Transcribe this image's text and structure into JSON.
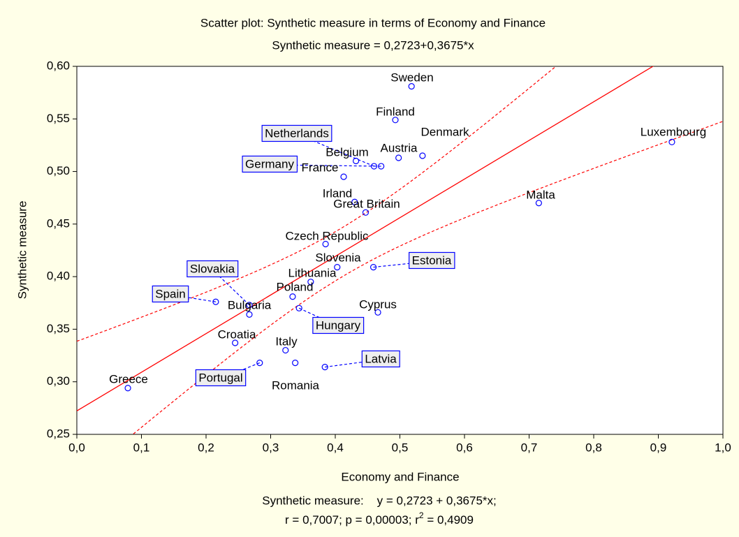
{
  "chart_data": {
    "type": "scatter",
    "title": "Scatter plot: Synthetic measure in terms of Economy and Finance",
    "subtitle": "Synthetic measure = 0,2723+0,3675*x",
    "x_label": "Economy and Finance",
    "y_label": "Synthetic measure",
    "notes": [
      "Synthetic measure:    y = 0,2723 + 0,3675*x;",
      "r = 0,7007; p = 0,00003; r",
      "2",
      " = 0,4909"
    ],
    "regression": {
      "intercept": 0.2723,
      "slope": 0.3675
    },
    "labels": [
      "Sweden",
      "Finland",
      "Denmark",
      "Luxembourg",
      "Malta",
      "Belgium",
      "Netherlands",
      "Austria",
      "Germany",
      "France",
      "Irland",
      "Great Britain",
      "Czech Republic",
      "Slovenia",
      "Estonia",
      "Lithuania",
      "Poland",
      "Slovakia",
      "Spain",
      "Bulgaria",
      "Hungary",
      "Cyprus",
      "Croatia",
      "Italy",
      "Portugal",
      "Romania",
      "Latvia",
      "Greece"
    ],
    "x": [
      0.518,
      0.493,
      0.535,
      0.921,
      0.715,
      0.432,
      0.46,
      0.498,
      0.471,
      0.413,
      0.43,
      0.447,
      0.385,
      0.403,
      0.459,
      0.362,
      0.334,
      0.267,
      0.215,
      0.267,
      0.344,
      0.466,
      0.245,
      0.323,
      0.283,
      0.338,
      0.384,
      0.079
    ],
    "values": [
      0.581,
      0.549,
      0.515,
      0.528,
      0.47,
      0.51,
      0.505,
      0.513,
      0.505,
      0.495,
      0.471,
      0.461,
      0.431,
      0.409,
      0.409,
      0.395,
      0.381,
      0.373,
      0.376,
      0.364,
      0.37,
      0.366,
      0.337,
      0.33,
      0.318,
      0.318,
      0.314,
      0.294
    ],
    "color": "#0000ff",
    "line_color": "#ff0000",
    "xlim": [
      0,
      1
    ],
    "ylim": [
      0.25,
      0.6
    ],
    "xticks": [
      {
        "value": 0,
        "label": "0,0"
      },
      {
        "value": 0.1,
        "label": "0,1"
      },
      {
        "value": 0.2,
        "label": "0,2"
      },
      {
        "value": 0.3,
        "label": "0,3"
      },
      {
        "value": 0.4,
        "label": "0,4"
      },
      {
        "value": 0.5,
        "label": "0,5"
      },
      {
        "value": 0.6,
        "label": "0,6"
      },
      {
        "value": 0.7,
        "label": "0,7"
      },
      {
        "value": 0.8,
        "label": "0,8"
      },
      {
        "value": 0.9,
        "label": "0,9"
      },
      {
        "value": 1,
        "label": "1,0"
      }
    ],
    "yticks": [
      {
        "value": 0.25,
        "label": "0,25"
      },
      {
        "value": 0.3,
        "label": "0,30"
      },
      {
        "value": 0.35,
        "label": "0,35"
      },
      {
        "value": 0.4,
        "label": "0,40"
      },
      {
        "value": 0.45,
        "label": "0,45"
      },
      {
        "value": 0.5,
        "label": "0,50"
      },
      {
        "value": 0.55,
        "label": "0,55"
      },
      {
        "value": 0.6,
        "label": "0,60"
      }
    ]
  }
}
